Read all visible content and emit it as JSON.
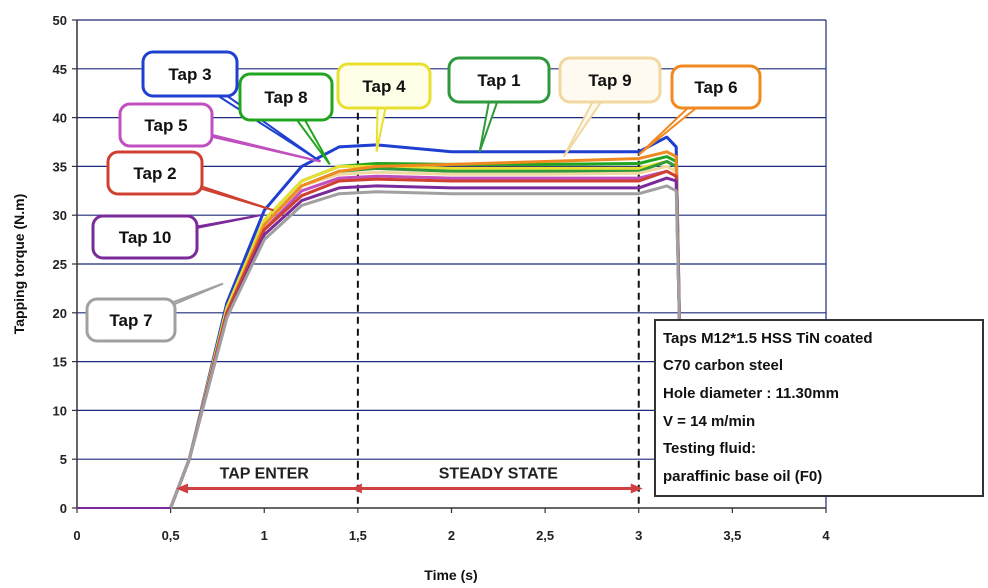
{
  "chart_data": {
    "type": "line",
    "xlabel": "Time (s)",
    "ylabel": "Tapping torque (N.m)",
    "xlim": [
      0,
      4
    ],
    "ylim": [
      0,
      50
    ],
    "xticks": [
      0,
      0.5,
      1,
      1.5,
      2,
      2.5,
      3,
      3.5,
      4
    ],
    "xtick_labels": [
      "0",
      "0,5",
      "1",
      "1,5",
      "2",
      "2,5",
      "3",
      "3,5",
      "4"
    ],
    "yticks": [
      0,
      5,
      10,
      15,
      20,
      25,
      30,
      35,
      40,
      45,
      50
    ],
    "ytick_labels": [
      "0",
      "5",
      "10",
      "15",
      "20",
      "25",
      "30",
      "35",
      "40",
      "45",
      "50"
    ],
    "grid": "horizontal",
    "vertical_markers": [
      1.5,
      3
    ],
    "series": [
      {
        "name": "Tap 3",
        "color": "#1f3fd0",
        "x": [
          0.5,
          0.6,
          0.8,
          1.0,
          1.2,
          1.4,
          1.6,
          2.0,
          2.5,
          3.0,
          3.15,
          3.2,
          3.22
        ],
        "y": [
          0,
          5,
          21,
          30.5,
          35,
          37,
          37.2,
          36.5,
          36.5,
          36.5,
          38,
          37,
          17
        ]
      },
      {
        "name": "Tap 8",
        "color": "#22a51e",
        "x": [
          0.5,
          0.6,
          0.8,
          1.0,
          1.2,
          1.4,
          1.6,
          2.0,
          2.5,
          3.0,
          3.15,
          3.2,
          3.22
        ],
        "y": [
          0,
          5,
          20.5,
          29.5,
          33.5,
          35,
          35.3,
          35.2,
          35.2,
          35.3,
          36,
          35.5,
          17
        ]
      },
      {
        "name": "Tap 4",
        "color": "#e8e030",
        "x": [
          0.5,
          0.6,
          0.8,
          1.0,
          1.2,
          1.4,
          1.6,
          2.0,
          2.5,
          3.0,
          3.15,
          3.2,
          3.22
        ],
        "y": [
          0,
          5,
          20.5,
          29.5,
          33.5,
          35,
          35,
          34.8,
          34.8,
          34.8,
          35.5,
          35,
          17
        ]
      },
      {
        "name": "Tap 1",
        "color": "#2e9a3a",
        "x": [
          0.5,
          0.6,
          0.8,
          1.0,
          1.2,
          1.4,
          1.6,
          2.0,
          2.5,
          3.0,
          3.15,
          3.2,
          3.22
        ],
        "y": [
          0,
          5,
          20,
          29,
          33,
          34.5,
          34.8,
          34.5,
          34.5,
          34.5,
          35.5,
          35,
          17
        ]
      },
      {
        "name": "Tap 9",
        "color": "#f0d8a0",
        "x": [
          0.5,
          0.6,
          0.8,
          1.0,
          1.2,
          1.4,
          1.6,
          2.0,
          2.5,
          3.0,
          3.15,
          3.2,
          3.22
        ],
        "y": [
          0,
          5,
          20,
          29,
          33,
          34.2,
          34.4,
          34.2,
          34.2,
          34.3,
          35,
          34.5,
          17
        ]
      },
      {
        "name": "Tap 6",
        "color": "#f08a20",
        "x": [
          0.5,
          0.6,
          0.8,
          1.0,
          1.2,
          1.4,
          1.6,
          2.0,
          2.5,
          3.0,
          3.15,
          3.2,
          3.22
        ],
        "y": [
          0,
          5,
          20,
          29,
          33,
          34.5,
          35,
          35.2,
          35.5,
          35.8,
          36.5,
          36,
          17
        ]
      },
      {
        "name": "Tap 5",
        "color": "#c050c0",
        "x": [
          0.5,
          0.6,
          0.8,
          1.0,
          1.2,
          1.4,
          1.6,
          2.0,
          2.5,
          3.0,
          3.15,
          3.2,
          3.22
        ],
        "y": [
          0,
          5,
          20,
          28.5,
          32.5,
          33.8,
          34,
          33.8,
          33.8,
          33.8,
          34.5,
          34,
          17
        ]
      },
      {
        "name": "Tap 2",
        "color": "#d04030",
        "x": [
          0.5,
          0.6,
          0.8,
          1.0,
          1.2,
          1.4,
          1.6,
          2.0,
          2.5,
          3.0,
          3.15,
          3.2,
          3.22
        ],
        "y": [
          0,
          5,
          20,
          28.5,
          32,
          33.5,
          33.7,
          33.5,
          33.5,
          33.5,
          34.5,
          34,
          17
        ]
      },
      {
        "name": "Tap 10",
        "color": "#7a2a9a",
        "x": [
          0.5,
          0.6,
          0.8,
          1.0,
          1.2,
          1.4,
          1.6,
          2.0,
          2.5,
          3.0,
          3.15,
          3.2,
          3.22
        ],
        "y": [
          0,
          5,
          19.5,
          28,
          31.5,
          32.8,
          33,
          32.8,
          32.8,
          32.8,
          33.8,
          33.5,
          17
        ]
      },
      {
        "name": "Tap 7",
        "color": "#a0a0a0",
        "x": [
          0.5,
          0.6,
          0.8,
          1.0,
          1.2,
          1.4,
          1.6,
          2.0,
          2.5,
          3.0,
          3.15,
          3.2,
          3.22
        ],
        "y": [
          0,
          5,
          19.5,
          27.5,
          31,
          32.2,
          32.4,
          32.2,
          32.2,
          32.2,
          33,
          32.5,
          17
        ]
      }
    ],
    "callouts": [
      {
        "label": "Tap 3",
        "color": "#1f3fd0",
        "fill": "#ffffff",
        "point": [
          1.3,
          35.5
        ]
      },
      {
        "label": "Tap 8",
        "color": "#22a51e",
        "fill": "#ffffff",
        "point": [
          1.35,
          35.2
        ]
      },
      {
        "label": "Tap 4",
        "color": "#e8e030",
        "fill": "#ffffe8",
        "point": [
          1.6,
          36.5
        ]
      },
      {
        "label": "Tap 1",
        "color": "#2e9a3a",
        "fill": "#ffffff",
        "point": [
          2.15,
          36.5
        ]
      },
      {
        "label": "Tap 9",
        "color": "#f0d8a0",
        "fill": "#fffaf0",
        "point": [
          2.6,
          36
        ]
      },
      {
        "label": "Tap 6",
        "color": "#f08a20",
        "fill": "#ffffff",
        "point": [
          3.0,
          36.2
        ]
      },
      {
        "label": "Tap 5",
        "color": "#c050c0",
        "fill": "#ffffff",
        "point": [
          1.3,
          35.5
        ]
      },
      {
        "label": "Tap 2",
        "color": "#d04030",
        "fill": "#ffffff",
        "point": [
          1.05,
          30.5
        ]
      },
      {
        "label": "Tap 10",
        "color": "#7a2a9a",
        "fill": "#ffffff",
        "point": [
          0.98,
          30
        ]
      },
      {
        "label": "Tap 7",
        "color": "#a0a0a0",
        "fill": "#ffffff",
        "point": [
          0.78,
          23
        ]
      }
    ],
    "phases": {
      "arrow_color": "#d04040",
      "arrow_x": [
        0.55,
        3.0
      ],
      "arrow_y": 2,
      "tap_enter": {
        "label": "TAP ENTER",
        "x": 1.0
      },
      "steady_state": {
        "label": "STEADY STATE",
        "x": 2.25
      }
    },
    "info_box": {
      "lines": [
        "Taps M12*1.5 HSS TiN coated",
        "C70 carbon steel",
        "Hole diameter : 11.30mm",
        "V = 14 m/min",
        "Testing fluid:",
        "paraffinic base oil (F0)"
      ]
    }
  }
}
